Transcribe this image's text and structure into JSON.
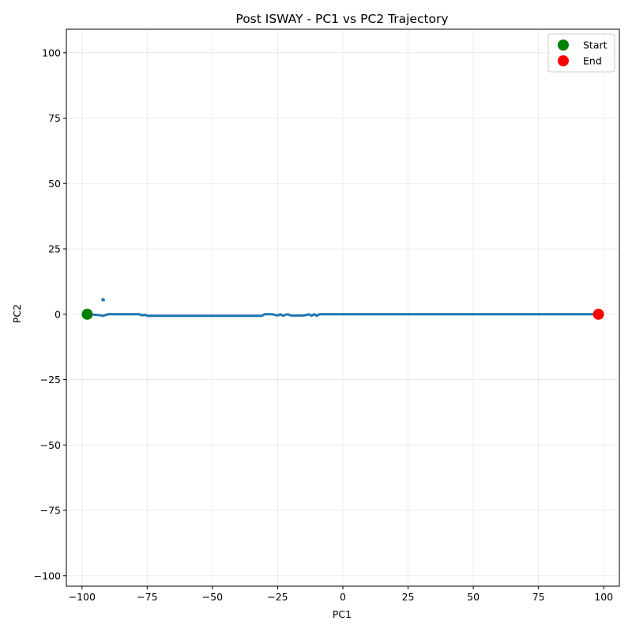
{
  "chart_data": {
    "type": "scatter",
    "title": "Post ISWAY - PC1 vs PC2 Trajectory",
    "xlabel": "PC1",
    "ylabel": "PC2",
    "xlim": [
      -106,
      106
    ],
    "ylim": [
      -104,
      109
    ],
    "xticks": [
      -100,
      -75,
      -50,
      -25,
      0,
      25,
      50,
      75,
      100
    ],
    "yticks": [
      -100,
      -75,
      -50,
      -25,
      0,
      25,
      50,
      75,
      100
    ],
    "grid": true,
    "legend_position": "top-right",
    "trajectory": {
      "color": "#1f77b4",
      "points": [
        [
          -98.0,
          0.0
        ],
        [
          -95.0,
          -0.2
        ],
        [
          -93.0,
          -0.4
        ],
        [
          -92.0,
          -0.6
        ],
        [
          -91.0,
          -0.3
        ],
        [
          -90.0,
          0.0
        ],
        [
          -85.0,
          0.0
        ],
        [
          -80.0,
          0.0
        ],
        [
          -78.0,
          0.0
        ],
        [
          -77.0,
          -0.4
        ],
        [
          -76.0,
          -0.2
        ],
        [
          -75.0,
          -0.6
        ],
        [
          -70.0,
          -0.6
        ],
        [
          -60.0,
          -0.6
        ],
        [
          -50.0,
          -0.6
        ],
        [
          -40.0,
          -0.6
        ],
        [
          -31.0,
          -0.6
        ],
        [
          -30.0,
          0.0
        ],
        [
          -27.0,
          0.0
        ],
        [
          -25.0,
          -0.5
        ],
        [
          -24.0,
          0.0
        ],
        [
          -23.0,
          -0.6
        ],
        [
          -22.0,
          -0.2
        ],
        [
          -21.0,
          0.0
        ],
        [
          -20.0,
          -0.5
        ],
        [
          -15.0,
          -0.5
        ],
        [
          -13.0,
          0.0
        ],
        [
          -12.0,
          -0.6
        ],
        [
          -11.0,
          0.0
        ],
        [
          -10.0,
          -0.6
        ],
        [
          -9.0,
          0.0
        ],
        [
          0.0,
          0.0
        ],
        [
          25.0,
          0.0
        ],
        [
          50.0,
          0.0
        ],
        [
          75.0,
          0.0
        ],
        [
          90.0,
          0.0
        ],
        [
          98.0,
          0.0
        ]
      ],
      "outliers": [
        [
          -92.0,
          5.6
        ],
        [
          -91.8,
          5.5
        ]
      ]
    },
    "series": [
      {
        "name": "Start",
        "color": "#008000",
        "x": [
          -98.0
        ],
        "y": [
          0.0
        ]
      },
      {
        "name": "End",
        "color": "#ff0000",
        "x": [
          98.0
        ],
        "y": [
          0.0
        ]
      }
    ]
  }
}
